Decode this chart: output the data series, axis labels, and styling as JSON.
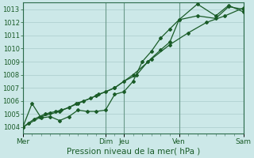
{
  "xlabel": "Pression niveau de la mer( hPa )",
  "ylim": [
    1003.5,
    1013.5
  ],
  "yticks": [
    1004,
    1005,
    1006,
    1007,
    1008,
    1009,
    1010,
    1011,
    1012,
    1013
  ],
  "xlim": [
    0,
    12
  ],
  "xtick_positions": [
    0,
    4.5,
    5.5,
    8.5,
    12
  ],
  "xtick_labels": [
    "Mer",
    "Dim",
    "Jeu",
    "Ven",
    "Sam"
  ],
  "vline_positions": [
    0,
    4.5,
    5.5,
    8.5,
    12
  ],
  "bg_color": "#cce8e8",
  "grid_color": "#aacccc",
  "line_color": "#1a5c28",
  "line1_x": [
    0,
    0.3,
    0.6,
    0.9,
    1.2,
    1.5,
    1.8,
    2.1,
    2.5,
    2.9,
    3.3,
    3.7,
    4.1,
    4.5,
    5.0,
    5.5,
    6.2,
    6.8,
    7.5,
    8.0,
    8.5,
    9.5,
    10.5,
    11.2,
    12.0
  ],
  "line1_y": [
    1004.0,
    1004.3,
    1004.6,
    1004.8,
    1005.0,
    1005.1,
    1005.2,
    1005.3,
    1005.5,
    1005.8,
    1006.0,
    1006.2,
    1006.5,
    1006.7,
    1007.0,
    1007.5,
    1008.0,
    1009.0,
    1009.9,
    1010.5,
    1012.2,
    1012.5,
    1012.3,
    1013.2,
    1013.0
  ],
  "line2_x": [
    0,
    0.5,
    1.0,
    1.5,
    2.0,
    2.5,
    3.0,
    3.5,
    4.0,
    4.5,
    5.0,
    5.5,
    6.0,
    6.5,
    7.0,
    7.5,
    8.0,
    8.5,
    9.5,
    10.5,
    11.2,
    12.0
  ],
  "line2_y": [
    1004.0,
    1005.8,
    1004.7,
    1004.8,
    1004.5,
    1004.8,
    1005.3,
    1005.2,
    1005.2,
    1005.3,
    1006.5,
    1006.7,
    1007.5,
    1009.0,
    1009.8,
    1010.8,
    1011.5,
    1012.2,
    1013.4,
    1012.5,
    1013.3,
    1012.8
  ],
  "line3_x": [
    0,
    1.0,
    2.0,
    3.0,
    4.0,
    5.0,
    6.0,
    7.0,
    8.0,
    9.0,
    10.0,
    11.0,
    12.0
  ],
  "line3_y": [
    1004.0,
    1004.8,
    1005.2,
    1005.8,
    1006.4,
    1007.0,
    1008.0,
    1009.2,
    1010.3,
    1011.2,
    1012.0,
    1012.5,
    1013.1
  ],
  "ylabel_fontsize": 6.0,
  "xlabel_fontsize": 7.5,
  "tick_fontsize": 6.5
}
